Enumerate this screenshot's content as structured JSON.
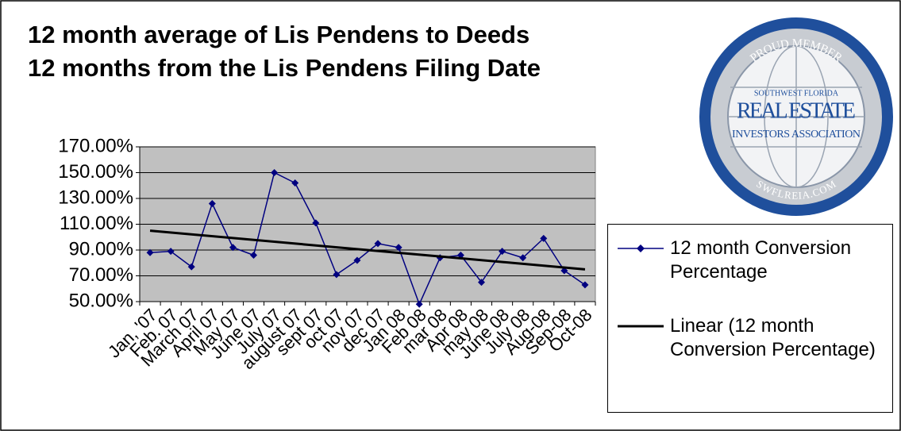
{
  "chart_data": {
    "type": "line",
    "title": "12 month average of Lis Pendens to Deeds",
    "subtitle": "12 months from the Lis Pendens Filing Date",
    "categories": [
      "Jan, '07",
      "Feb. 07",
      "March 07",
      "April 07",
      "May 07",
      "June 07",
      "July 07",
      "august 07",
      "sept 07",
      "oct 07",
      "nov 07",
      "dec 07",
      "Jan 08",
      "Feb 08",
      "mar 08",
      "Apr 08",
      "may 08",
      "June 08",
      "July 08",
      "Aug-08",
      "Sep-08",
      "Oct-08"
    ],
    "series": [
      {
        "name": "12 month Conversion Percentage",
        "color": "#000080",
        "values": [
          88,
          89,
          77,
          126,
          92,
          86,
          150,
          142,
          111,
          71,
          82,
          95,
          92,
          48,
          84,
          86,
          65,
          89,
          84,
          99,
          74,
          63
        ]
      }
    ],
    "trendline": {
      "name": "Linear (12 month Conversion Percentage)",
      "color": "#000000",
      "start": 105,
      "end": 75
    },
    "ylim": [
      50,
      170
    ],
    "yticks": [
      {
        "value": 50,
        "label": "50.00%"
      },
      {
        "value": 70,
        "label": "70.00%"
      },
      {
        "value": 90,
        "label": "90.00%"
      },
      {
        "value": 110,
        "label": "110.00%"
      },
      {
        "value": 130,
        "label": "130.00%"
      },
      {
        "value": 150,
        "label": "150.00%"
      },
      {
        "value": 170,
        "label": "170.00%"
      }
    ],
    "grid": true,
    "legend": "right"
  },
  "logo": {
    "top": "PROUD MEMBER",
    "region": "SOUTHWEST FLORIDA",
    "name": "REAL ESTATE",
    "association": "INVESTORS ASSOCIATION",
    "site": "SWFLREIA.COM"
  }
}
